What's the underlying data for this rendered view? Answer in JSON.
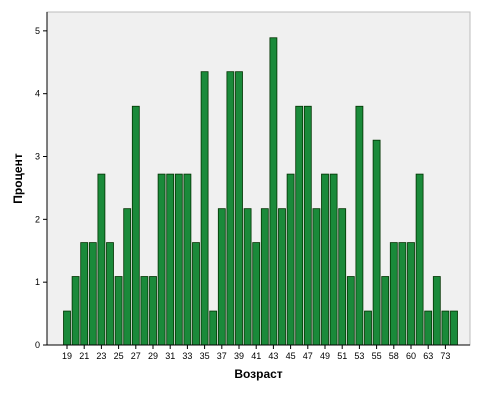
{
  "colors": {
    "plot_background": "#f0f0f0",
    "bar_fill": "#1a8a3a",
    "bar_stroke": "#003300",
    "axis": "#000000"
  },
  "chart_data": {
    "type": "bar",
    "title": "",
    "xlabel": "Возраст",
    "ylabel": "Процент",
    "ylim": [
      0,
      5.3
    ],
    "yticks": [
      0,
      1,
      2,
      3,
      4,
      5
    ],
    "grid": false,
    "legend": "none",
    "categories": [
      "19",
      "20",
      "21",
      "22",
      "23",
      "24",
      "25",
      "26",
      "27",
      "28",
      "29",
      "30",
      "31",
      "32",
      "33",
      "34",
      "35",
      "36",
      "37",
      "38",
      "39",
      "40",
      "41",
      "42",
      "43",
      "44",
      "45",
      "46",
      "47",
      "48",
      "49",
      "50",
      "51",
      "52",
      "53",
      "54",
      "55",
      "56",
      "58",
      "59",
      "60",
      "61",
      "63",
      "64",
      "73",
      "74"
    ],
    "x_tick_labels": [
      "19",
      "21",
      "23",
      "25",
      "27",
      "29",
      "31",
      "33",
      "35",
      "37",
      "39",
      "41",
      "43",
      "45",
      "47",
      "49",
      "51",
      "53",
      "55",
      "58",
      "60",
      "63",
      "73"
    ],
    "values": [
      0.54,
      1.09,
      1.63,
      1.63,
      2.72,
      1.63,
      1.09,
      2.17,
      3.8,
      1.09,
      1.09,
      2.72,
      2.72,
      2.72,
      2.72,
      1.63,
      4.35,
      0.54,
      2.17,
      4.35,
      4.35,
      2.17,
      1.63,
      2.17,
      4.89,
      2.17,
      2.72,
      3.8,
      3.8,
      2.17,
      2.72,
      2.72,
      2.17,
      1.09,
      3.8,
      0.54,
      3.26,
      1.09,
      1.63,
      1.63,
      1.63,
      2.72,
      0.54,
      1.09,
      0.54,
      0.54
    ]
  }
}
